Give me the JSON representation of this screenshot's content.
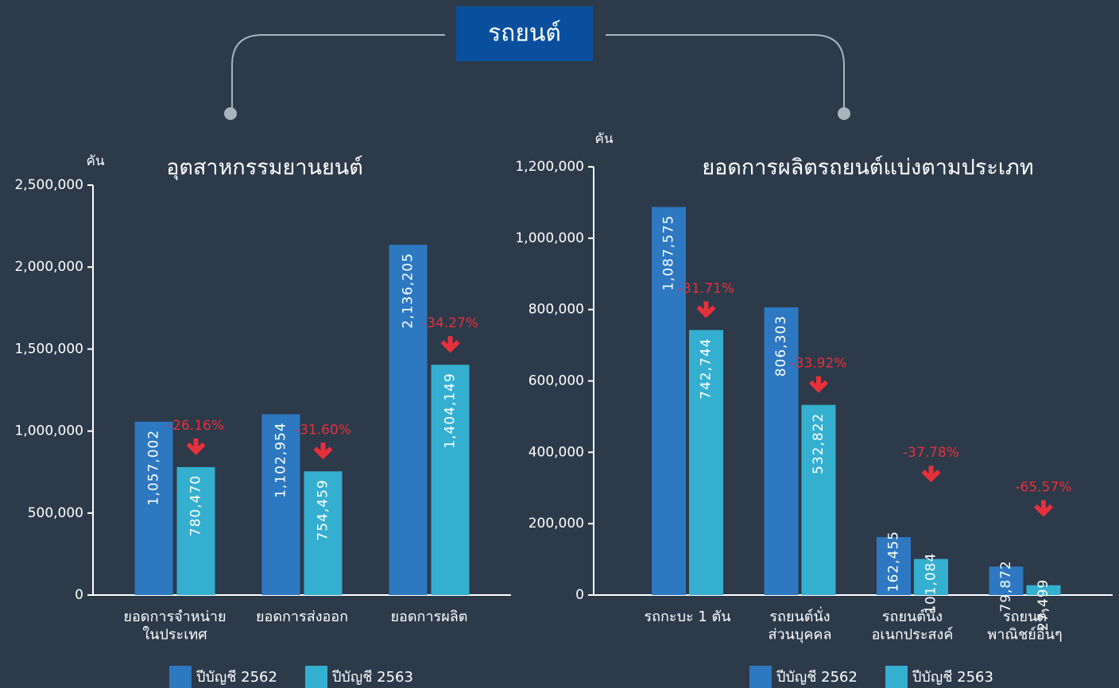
{
  "header": {
    "title": "รถยนต์"
  },
  "chart_data": [
    {
      "type": "bar",
      "title": "อุตสาหกรรมยานยนต์",
      "unit_label": "คัน",
      "categories": [
        "ยอดการจำหน่าย\nในประเทศ",
        "ยอดการส่งออก",
        "ยอดการผลิต"
      ],
      "series": [
        {
          "name": "ปีบัญชี 2562",
          "color": "#2d78c0",
          "values": [
            1057002,
            1102954,
            2136205
          ],
          "value_labels": [
            "1,057,002",
            "1,102,954",
            "2,136,205"
          ]
        },
        {
          "name": "ปีบัญชี 2563",
          "color": "#35afd0",
          "values": [
            780470,
            754459,
            1404149
          ],
          "value_labels": [
            "780,470",
            "754,459",
            "1,404,149"
          ]
        }
      ],
      "change_labels": [
        "-26.16%",
        "-31.60%",
        "-34.27%"
      ],
      "ylim": [
        0,
        2500000
      ],
      "yticks": [
        0,
        {
          "value": 500000,
          "label": "500,000"
        },
        {
          "value": 1000000,
          "label": "1,000,000"
        },
        {
          "value": 1500000,
          "label": "1,500,000"
        },
        {
          "value": 2000000,
          "label": "2,000,000"
        },
        {
          "value": 2500000,
          "label": "2,500,000"
        }
      ]
    },
    {
      "type": "bar",
      "title": "ยอดการผลิตรถยนต์แบ่งตามประเภท",
      "unit_label": "คัน",
      "categories": [
        "รถกะบะ 1 ตัน",
        "รถยนต์นั่ง\nส่วนบุคคล",
        "รถยนต์นั่ง\nอเนกประสงค์",
        "รถยนต์\nพาณิชย์อื่นๆ"
      ],
      "series": [
        {
          "name": "ปีบัญชี 2562",
          "color": "#2d78c0",
          "values": [
            1087575,
            806303,
            162455,
            79872
          ],
          "value_labels": [
            "1,087,575",
            "806,303",
            "162,455",
            "79,872"
          ]
        },
        {
          "name": "ปีบัญชี 2563",
          "color": "#35afd0",
          "values": [
            742744,
            532822,
            101084,
            27499
          ],
          "value_labels": [
            "742,744",
            "532,822",
            "101,084",
            "27,499"
          ]
        }
      ],
      "change_labels": [
        "-31.71%",
        "-33.92%",
        "-37.78%",
        "-65.57%"
      ],
      "ylim": [
        0,
        1200000
      ],
      "yticks": [
        0,
        {
          "value": 200000,
          "label": "200,000"
        },
        {
          "value": 400000,
          "label": "400,000"
        },
        {
          "value": 600000,
          "label": "600,000"
        },
        {
          "value": 800000,
          "label": "800,000"
        },
        {
          "value": 1000000,
          "label": "1,000,000"
        },
        {
          "value": 1200000,
          "label": "1,200,000"
        }
      ]
    }
  ]
}
